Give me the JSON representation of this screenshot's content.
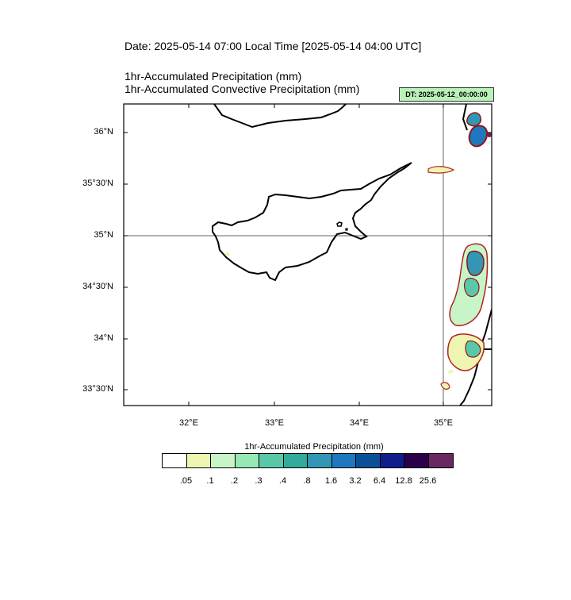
{
  "header": {
    "date_line": "Date: 2025-05-14  07:00 Local Time [2025-05-14  04:00 UTC]",
    "title_line1": "1hr-Accumulated Precipitation   (mm)",
    "title_line2": "1hr-Accumulated Convective Precipitation   (mm)",
    "dt_label": "DT: 2025-05-12_00:00:00"
  },
  "map": {
    "region": "Cyprus and Levant coast",
    "lat_labels": [
      "36°N",
      "35°30'N",
      "35°N",
      "34°30'N",
      "34°N",
      "33°30'N"
    ],
    "lon_labels": [
      "32°E",
      "33°E",
      "34°E",
      "35°E"
    ],
    "reference_lines": {
      "lat": "35°N",
      "lon": "35°E"
    },
    "colors": {
      "coast": "#000000",
      "convective_contour": "#b22222",
      "contour_fill_light": "#eef5b0"
    }
  },
  "colorbar": {
    "title": "1hr-Accumulated Precipitation  (mm)",
    "colors": [
      "#ffffff",
      "#eef5b0",
      "#c8f5c8",
      "#96e8b4",
      "#5ac8a8",
      "#32aa9c",
      "#3296b4",
      "#1e78be",
      "#0a5096",
      "#0f1e8c",
      "#2a004a",
      "#6a2860"
    ],
    "labels": [
      ".05",
      ".1",
      ".2",
      ".3",
      ".4",
      ".8",
      "1.6",
      "3.2",
      "6.4",
      "12.8",
      "25.6"
    ]
  }
}
